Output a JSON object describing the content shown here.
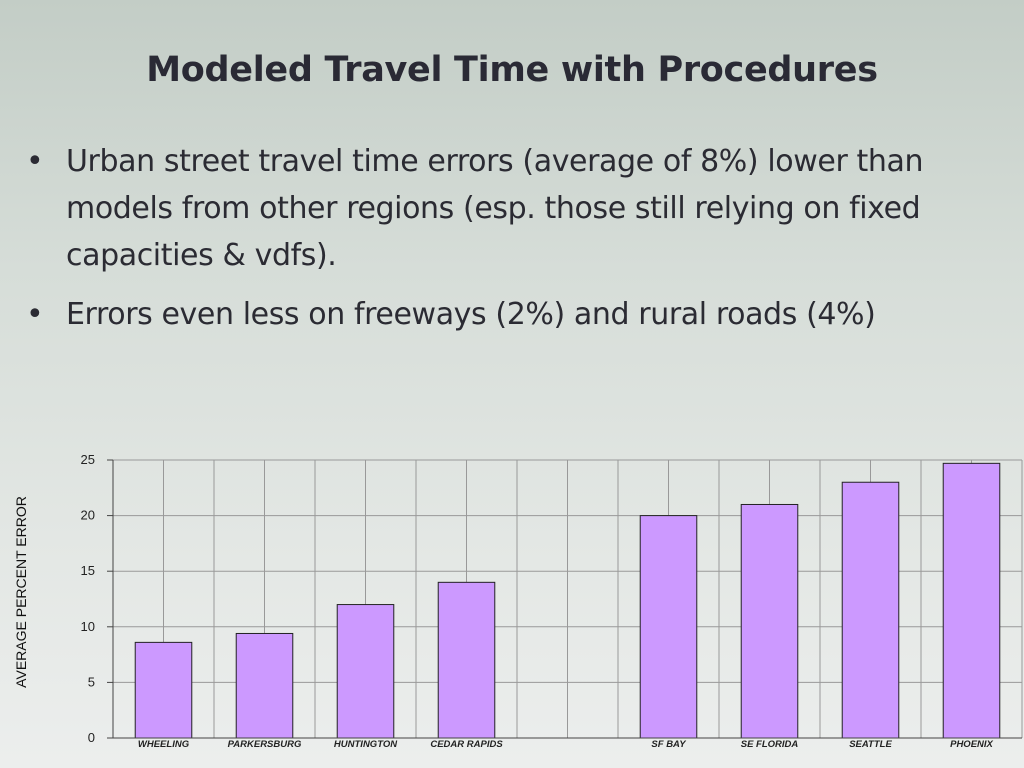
{
  "slide": {
    "title": "Modeled Travel Time with Procedures",
    "bullets": [
      {
        "marker": "•",
        "text": "Urban street travel time errors (average of 8%) lower than models from other regions (esp. those still relying on fixed capacities & vdfs)."
      },
      {
        "marker": "•",
        "text": "Errors even less on freeways (2%) and rural roads (4%)"
      }
    ]
  },
  "chart_data": {
    "type": "bar",
    "categories": [
      "WHEELING",
      "PARKERSBURG",
      "HUNTINGTON",
      "CEDAR RAPIDS",
      "",
      "SF BAY",
      "SE FLORIDA",
      "SEATTLE",
      "PHOENIX"
    ],
    "values": [
      8.6,
      9.4,
      12,
      14,
      null,
      20,
      21,
      23,
      24.7
    ],
    "xlabel": "",
    "ylabel": "AVERAGE PERCENT ERROR",
    "ylim": [
      0,
      25
    ],
    "yticks": [
      0,
      5,
      10,
      15,
      20,
      25
    ],
    "grid": "on",
    "legend": "none",
    "colors": {
      "bar_fill": "#cc99ff",
      "bar_stroke": "#222222",
      "grid": "#999999",
      "axis": "#444444"
    }
  }
}
